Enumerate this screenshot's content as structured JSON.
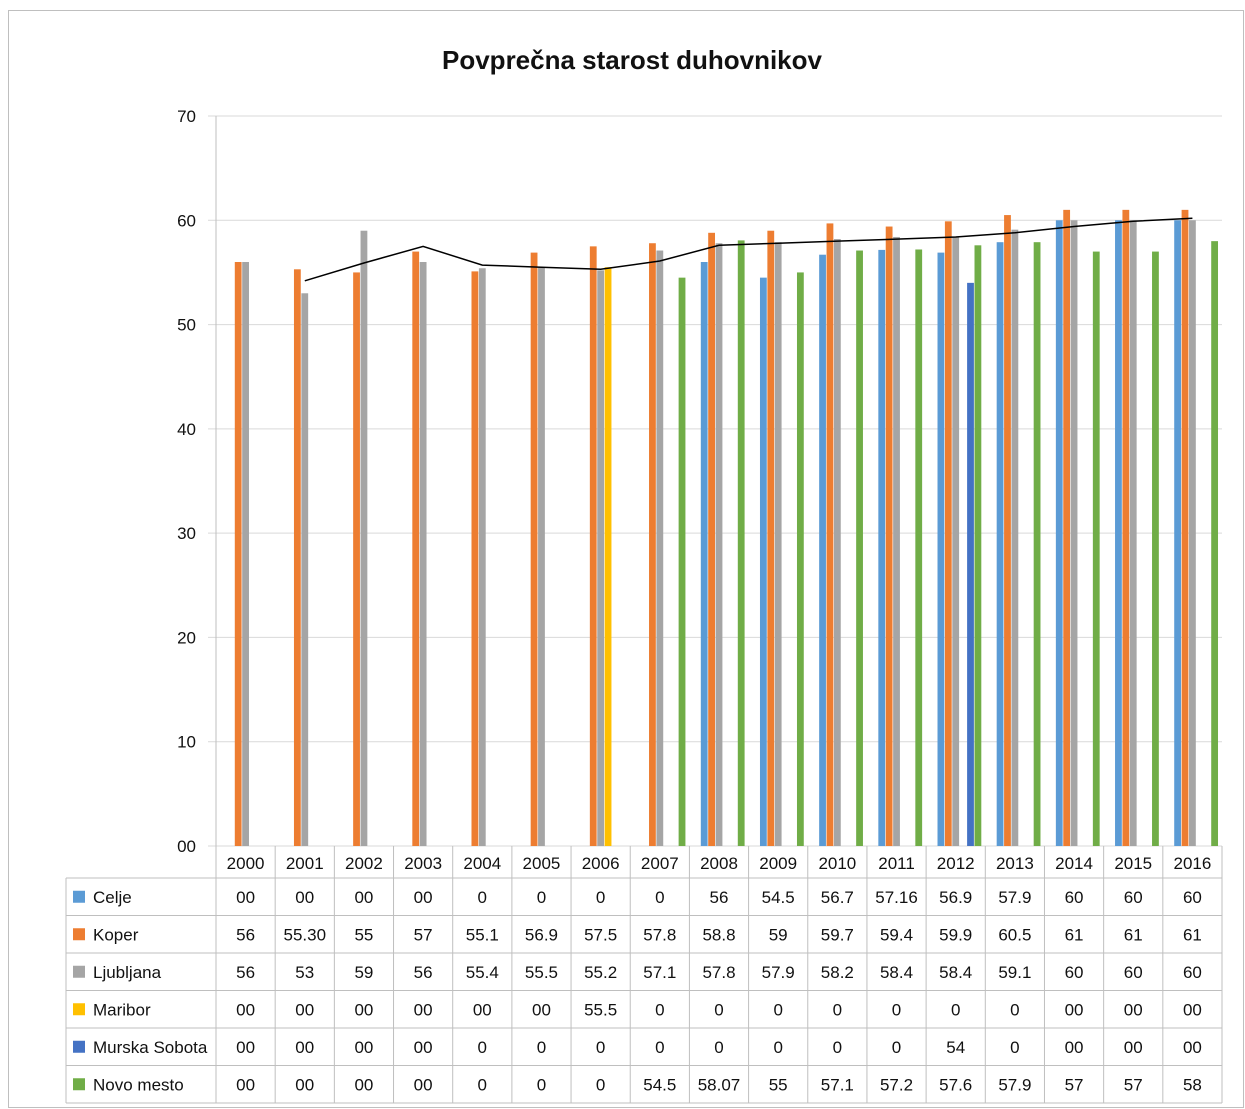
{
  "chart_data": {
    "type": "bar",
    "title": "Povprečna starost duhovnikov",
    "xlabel": "",
    "ylabel": "",
    "ylim": [
      0,
      70
    ],
    "y_ticks": [
      "00",
      "10",
      "20",
      "30",
      "40",
      "50",
      "60",
      "70"
    ],
    "grid": true,
    "legend": "data table",
    "categories": [
      "2000",
      "2001",
      "2002",
      "2003",
      "2004",
      "2005",
      "2006",
      "2007",
      "2008",
      "2009",
      "2010",
      "2011",
      "2012",
      "2013",
      "2014",
      "2015",
      "2016"
    ],
    "series": [
      {
        "name": "Celje",
        "color": "#5b9bd5",
        "values": [
          0,
          0,
          0,
          0,
          0,
          0,
          0,
          0,
          56,
          54.5,
          56.7,
          57.16,
          56.9,
          57.9,
          60,
          60,
          60
        ],
        "labels": [
          "00",
          "00",
          "00",
          "00",
          "0",
          "0",
          "0",
          "0",
          "56",
          "54.5",
          "56.7",
          "57.16",
          "56.9",
          "57.9",
          "60",
          "60",
          "60"
        ]
      },
      {
        "name": "Koper",
        "color": "#ed7d31",
        "values": [
          56,
          55.3,
          55,
          57,
          55.1,
          56.9,
          57.5,
          57.8,
          58.8,
          59,
          59.7,
          59.4,
          59.9,
          60.5,
          61,
          61,
          61
        ],
        "labels": [
          "56",
          "55.30",
          "55",
          "57",
          "55.1",
          "56.9",
          "57.5",
          "57.8",
          "58.8",
          "59",
          "59.7",
          "59.4",
          "59.9",
          "60.5",
          "61",
          "61",
          "61"
        ]
      },
      {
        "name": "Ljubljana",
        "color": "#a5a5a5",
        "values": [
          56,
          53,
          59,
          56,
          55.4,
          55.5,
          55.2,
          57.1,
          57.8,
          57.9,
          58.2,
          58.4,
          58.4,
          59.1,
          60,
          60,
          60
        ],
        "labels": [
          "56",
          "53",
          "59",
          "56",
          "55.4",
          "55.5",
          "55.2",
          "57.1",
          "57.8",
          "57.9",
          "58.2",
          "58.4",
          "58.4",
          "59.1",
          "60",
          "60",
          "60"
        ]
      },
      {
        "name": "Maribor",
        "color": "#ffc000",
        "values": [
          0,
          0,
          0,
          0,
          0,
          0,
          55.5,
          0,
          0,
          0,
          0,
          0,
          0,
          0,
          0,
          0,
          0
        ],
        "labels": [
          "00",
          "00",
          "00",
          "00",
          "00",
          "00",
          "55.5",
          "0",
          "0",
          "0",
          "0",
          "0",
          "0",
          "0",
          "00",
          "00",
          "00"
        ]
      },
      {
        "name": "Murska Sobota",
        "color": "#4472c4",
        "values": [
          0,
          0,
          0,
          0,
          0,
          0,
          0,
          0,
          0,
          0,
          0,
          0,
          54,
          0,
          0,
          0,
          0
        ],
        "labels": [
          "00",
          "00",
          "00",
          "00",
          "0",
          "0",
          "0",
          "0",
          "0",
          "0",
          "0",
          "0",
          "54",
          "0",
          "00",
          "00",
          "00"
        ]
      },
      {
        "name": "Novo mesto",
        "color": "#70ad47",
        "values": [
          0,
          0,
          0,
          0,
          0,
          0,
          0,
          54.5,
          58.07,
          55,
          57.1,
          57.2,
          57.6,
          57.9,
          57,
          57,
          58
        ],
        "labels": [
          "00",
          "00",
          "00",
          "00",
          "0",
          "0",
          "0",
          "54.5",
          "58.07",
          "55",
          "57.1",
          "57.2",
          "57.6",
          "57.9",
          "57",
          "57",
          "58"
        ]
      }
    ],
    "trendline": {
      "color": "#000000",
      "values": [
        null,
        54.2,
        55.9,
        57.5,
        55.7,
        55.5,
        55.3,
        56.1,
        57.6,
        57.8,
        58.0,
        58.2,
        58.4,
        58.8,
        59.4,
        59.9,
        60.2
      ]
    }
  }
}
